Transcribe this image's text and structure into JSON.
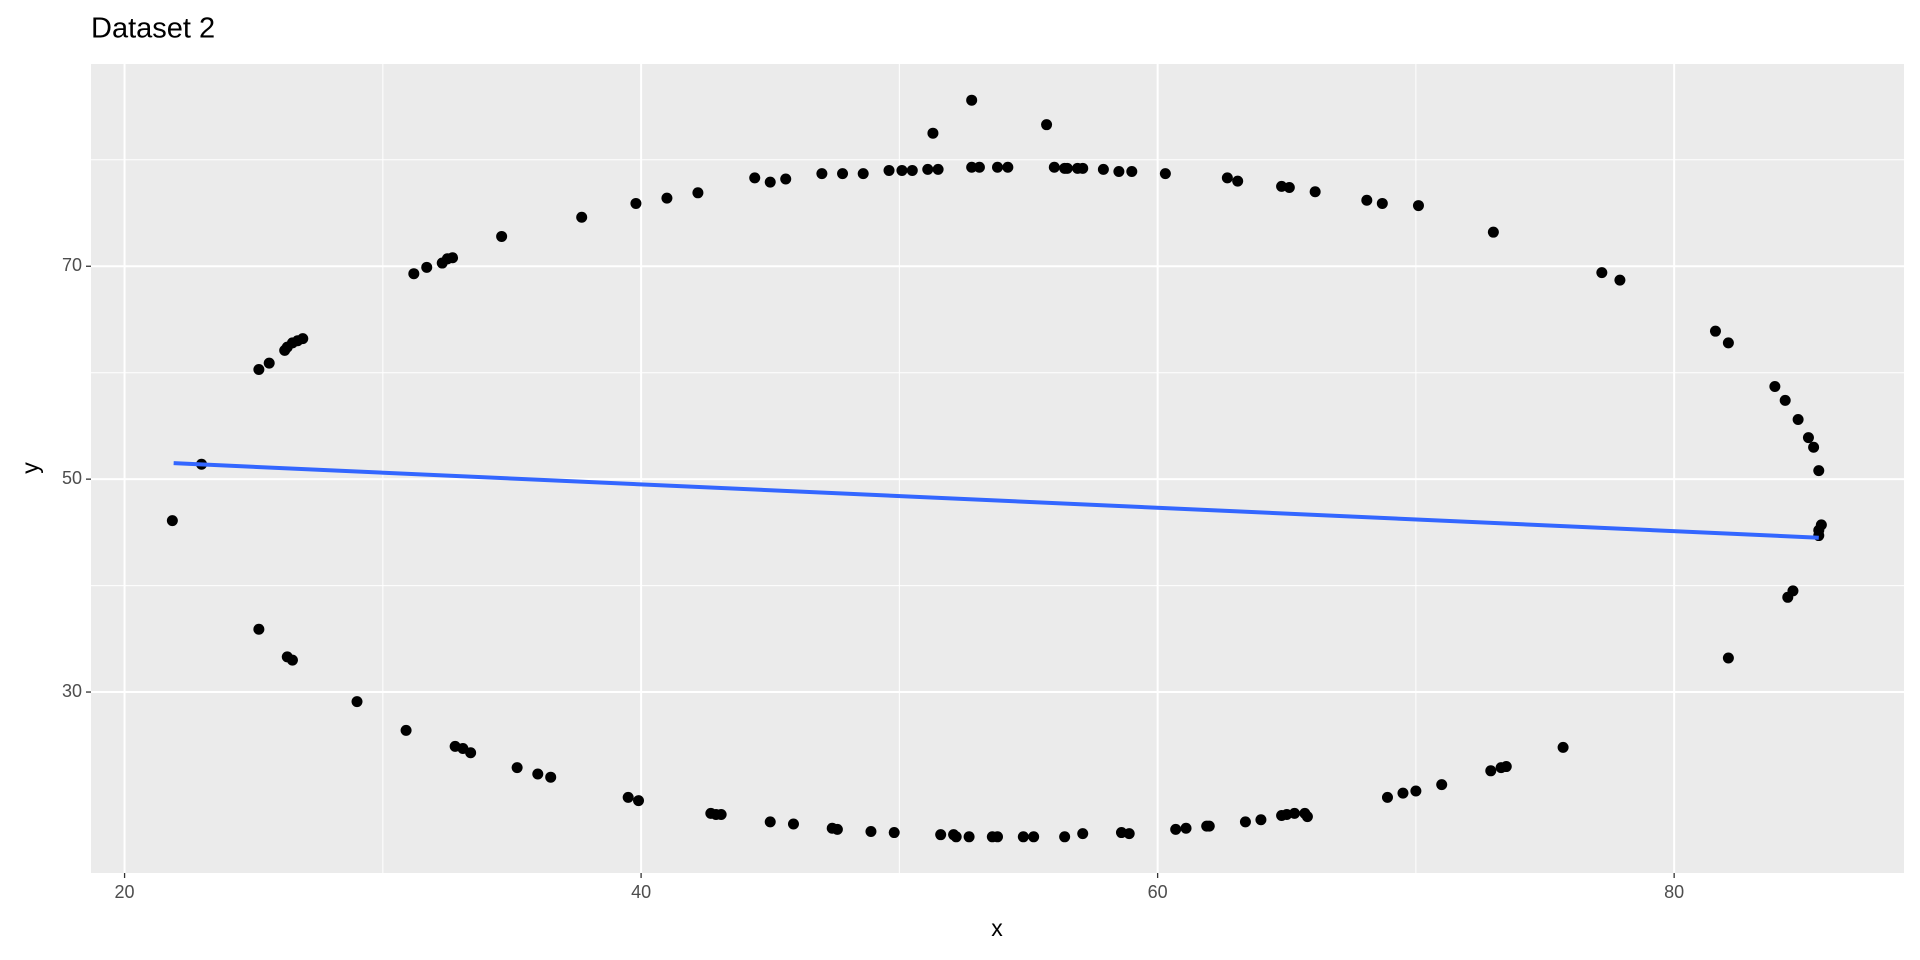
{
  "chart_data": {
    "type": "scatter",
    "title": "Dataset 2",
    "x_label": "x",
    "y_label": "y",
    "x": [
      21.85,
      22.98,
      25.2,
      25.6,
      26.2,
      26.3,
      26.5,
      26.7,
      26.9,
      25.2,
      26.3,
      26.5,
      29.0,
      30.9,
      31.2,
      31.7,
      32.3,
      32.5,
      32.7,
      32.8,
      33.1,
      33.4,
      34.6,
      35.2,
      36.0,
      36.5,
      37.7,
      39.5,
      39.9,
      39.8,
      41.0,
      42.2,
      42.7,
      42.9,
      43.1,
      44.4,
      45.0,
      45.6,
      45.0,
      45.9,
      47.0,
      47.8,
      48.6,
      47.4,
      47.6,
      48.9,
      49.6,
      50.1,
      50.5,
      49.8,
      51.1,
      51.5,
      51.3,
      51.6,
      52.1,
      52.2,
      52.7,
      52.8,
      52.8,
      53.1,
      53.6,
      53.8,
      53.8,
      54.2,
      54.8,
      55.2,
      55.7,
      56.0,
      56.4,
      56.5,
      56.9,
      57.1,
      56.4,
      57.1,
      57.9,
      58.5,
      59.0,
      58.6,
      58.9,
      60.3,
      60.7,
      61.1,
      61.9,
      62.0,
      62.7,
      63.1,
      63.4,
      64.0,
      64.8,
      65.0,
      65.3,
      65.7,
      65.8,
      64.8,
      65.1,
      66.1,
      68.1,
      68.7,
      68.9,
      69.5,
      70.0,
      70.1,
      71.0,
      72.9,
      73.3,
      73.5,
      73.0,
      75.7,
      77.2,
      77.9,
      81.6,
      82.1,
      82.1,
      83.9,
      84.3,
      84.4,
      84.6,
      84.8,
      85.2,
      85.4,
      85.6,
      85.7,
      85.6,
      85.6
    ],
    "y": [
      46.1,
      51.4,
      60.3,
      60.9,
      62.1,
      62.4,
      62.8,
      63.0,
      63.2,
      35.9,
      33.3,
      33.0,
      29.1,
      26.4,
      69.3,
      69.9,
      70.3,
      70.7,
      70.8,
      24.9,
      24.7,
      24.3,
      72.8,
      22.9,
      22.3,
      22.0,
      74.6,
      20.1,
      19.8,
      75.9,
      76.4,
      76.9,
      18.6,
      18.5,
      18.5,
      78.3,
      77.9,
      78.2,
      17.8,
      17.6,
      78.7,
      78.7,
      78.7,
      17.2,
      17.1,
      16.9,
      79.0,
      79.0,
      79.0,
      16.8,
      79.1,
      79.1,
      82.5,
      16.6,
      16.6,
      16.4,
      16.4,
      85.6,
      79.3,
      79.3,
      16.4,
      16.4,
      79.3,
      79.3,
      16.4,
      16.4,
      83.3,
      79.3,
      79.2,
      79.2,
      79.2,
      79.2,
      16.4,
      16.7,
      79.1,
      78.9,
      78.9,
      16.8,
      16.7,
      78.7,
      17.1,
      17.2,
      17.4,
      17.4,
      78.3,
      78.0,
      17.8,
      18.0,
      18.4,
      18.5,
      18.6,
      18.6,
      18.3,
      77.5,
      77.4,
      77.0,
      76.2,
      75.9,
      20.1,
      20.5,
      20.7,
      75.7,
      21.3,
      22.6,
      22.9,
      23.0,
      73.2,
      24.8,
      69.4,
      68.7,
      63.9,
      62.8,
      33.2,
      58.7,
      57.4,
      38.9,
      39.5,
      55.6,
      53.9,
      53.0,
      50.8,
      45.7,
      45.2,
      44.7
    ],
    "color": "#000000",
    "fit": {
      "x": [
        21.9,
        85.6
      ],
      "y": [
        51.5,
        44.5
      ],
      "color": "#3366ff"
    },
    "xlim": [
      18.7,
      88.9
    ],
    "ylim": [
      13,
      89
    ],
    "xticks": [
      20,
      40,
      60,
      80
    ],
    "yticks": [
      30,
      50,
      70
    ],
    "xminor": [
      30,
      50,
      70
    ],
    "yminor": [
      40,
      60,
      80
    ],
    "grid": true
  }
}
